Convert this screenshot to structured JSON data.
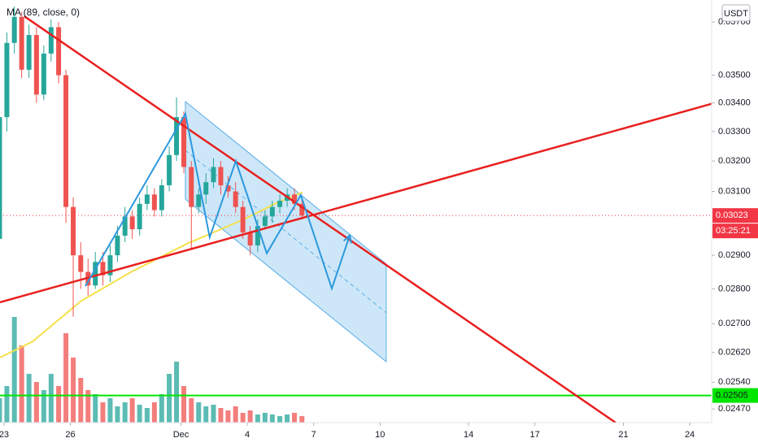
{
  "chart_data": {
    "type": "candlestick",
    "currency_label": "USDT",
    "log_scale": true,
    "x": [
      -0.2,
      0.13,
      0.47,
      0.8,
      1.13,
      1.47,
      1.8,
      2.13,
      2.47,
      2.8,
      3.13,
      3.47,
      3.8,
      4.13,
      4.47,
      4.8,
      5.13,
      5.47,
      5.8,
      6.13,
      6.47,
      6.8,
      7.13,
      7.47,
      7.8,
      8.13,
      8.47,
      8.8,
      9.13,
      9.47,
      9.8,
      10.13,
      10.47,
      10.8,
      11.13,
      11.47,
      11.8,
      12.13,
      12.47,
      12.8,
      13.13,
      13.47
    ],
    "open": [
      0.0295,
      0.0335,
      0.0362,
      0.0372,
      0.0352,
      0.0365,
      0.0343,
      0.0358,
      0.0368,
      0.035,
      0.0305,
      0.029,
      0.0285,
      0.0281,
      0.0288,
      0.0284,
      0.029,
      0.0296,
      0.0302,
      0.0298,
      0.0306,
      0.0309,
      0.0304,
      0.0312,
      0.0322,
      0.0335,
      0.0318,
      0.0305,
      0.0309,
      0.0313,
      0.0318,
      0.0312,
      0.031,
      0.0305,
      0.0297,
      0.0293,
      0.0299,
      0.0302,
      0.0305,
      0.0307,
      0.0309,
      0.0306
    ],
    "high": [
      0.0338,
      0.0366,
      0.0376,
      0.0374,
      0.0369,
      0.0368,
      0.0361,
      0.0371,
      0.037,
      0.0352,
      0.0308,
      0.0294,
      0.0289,
      0.0291,
      0.0291,
      0.0293,
      0.0299,
      0.0305,
      0.0304,
      0.0308,
      0.0312,
      0.0311,
      0.0314,
      0.0325,
      0.0342,
      0.0337,
      0.032,
      0.0311,
      0.0316,
      0.0321,
      0.032,
      0.0315,
      0.0313,
      0.0307,
      0.0299,
      0.0301,
      0.0304,
      0.0307,
      0.0309,
      0.0311,
      0.0311,
      0.0308
    ],
    "low": [
      0.0288,
      0.033,
      0.0358,
      0.0349,
      0.0349,
      0.034,
      0.0341,
      0.0355,
      0.0347,
      0.03,
      0.0272,
      0.028,
      0.0278,
      0.028,
      0.0281,
      0.0282,
      0.0288,
      0.0294,
      0.0295,
      0.0296,
      0.0304,
      0.0302,
      0.0302,
      0.031,
      0.032,
      0.0316,
      0.0292,
      0.0303,
      0.0306,
      0.0311,
      0.0309,
      0.0308,
      0.0303,
      0.0295,
      0.029,
      0.0291,
      0.0298,
      0.03,
      0.0303,
      0.0305,
      0.0304,
      0.0301
    ],
    "close": [
      0.0335,
      0.0362,
      0.0372,
      0.0352,
      0.0365,
      0.0343,
      0.0358,
      0.0368,
      0.035,
      0.0305,
      0.029,
      0.0285,
      0.0281,
      0.0288,
      0.0284,
      0.029,
      0.0296,
      0.0302,
      0.0298,
      0.0306,
      0.0309,
      0.0304,
      0.0312,
      0.0322,
      0.0335,
      0.0318,
      0.0305,
      0.0309,
      0.0313,
      0.0318,
      0.0312,
      0.031,
      0.0305,
      0.0297,
      0.0293,
      0.0299,
      0.0302,
      0.0305,
      0.0307,
      0.0309,
      0.0306,
      0.03023
    ],
    "volume": [
      30,
      45,
      130,
      95,
      60,
      50,
      40,
      60,
      45,
      110,
      80,
      55,
      40,
      35,
      25,
      30,
      20,
      25,
      30,
      22,
      18,
      25,
      35,
      60,
      75,
      45,
      30,
      25,
      20,
      22,
      18,
      15,
      20,
      12,
      15,
      10,
      12,
      10,
      8,
      10,
      12,
      8
    ],
    "up_color": "#26a69a",
    "down_color": "#ef5350",
    "xlim": [
      -0.18,
      31.99
    ],
    "xticks": [
      {
        "value": 0,
        "label": "23"
      },
      {
        "value": 3,
        "label": "26"
      },
      {
        "value": 8,
        "label": "Dec"
      },
      {
        "value": 11,
        "label": "4"
      },
      {
        "value": 14,
        "label": "7"
      },
      {
        "value": 17,
        "label": "10"
      },
      {
        "value": 21,
        "label": "14"
      },
      {
        "value": 24,
        "label": "17"
      },
      {
        "value": 28,
        "label": "21"
      },
      {
        "value": 31,
        "label": "24"
      }
    ],
    "ylim": [
      0.02435,
      0.03786
    ],
    "yticks": [
      {
        "value": 0.037,
        "label": "0.03700"
      },
      {
        "value": 0.035,
        "label": "0.03500"
      },
      {
        "value": 0.034,
        "label": "0.03400"
      },
      {
        "value": 0.033,
        "label": "0.03300"
      },
      {
        "value": 0.032,
        "label": "0.03200"
      },
      {
        "value": 0.031,
        "label": "0.03100"
      },
      {
        "value": 0.029,
        "label": "0.02900"
      },
      {
        "value": 0.028,
        "label": "0.02800"
      },
      {
        "value": 0.027,
        "label": "0.02700"
      },
      {
        "value": 0.0262,
        "label": "0.02620"
      },
      {
        "value": 0.0254,
        "label": "0.02540"
      },
      {
        "value": 0.0247,
        "label": "0.02470"
      }
    ],
    "y2lim": [
      0,
      520
    ],
    "ma": {
      "name": "MA (89, close, 0)",
      "color": "#f5e14a",
      "x": [
        -0.18,
        1.29,
        3.49,
        5.7,
        8.27,
        10.85,
        12.32,
        13.49
      ],
      "values": [
        0.02606,
        0.0265,
        0.02765,
        0.02848,
        0.02935,
        0.03011,
        0.03063,
        0.03097
      ]
    },
    "last_price": 0.03023,
    "countdown": "03:25:21",
    "last_price_color": "#f23645",
    "support": 0.02505,
    "support_color": "#00e600",
    "trend_lines": [
      {
        "color": "#e8201f",
        "x": [
          0.92,
          27.65
        ],
        "y": [
          0.03722,
          0.02435
        ]
      },
      {
        "color": "#e8201f",
        "x": [
          -0.18,
          31.99
        ],
        "y": [
          0.02761,
          0.03397
        ]
      }
    ],
    "channel": {
      "color": "#5aaee8",
      "x": [
        8.2,
        17.28,
        17.28,
        8.2
      ],
      "y": [
        0.03405,
        0.02874,
        0.02595,
        0.03075
      ]
    },
    "path": {
      "color": "#2c98de",
      "x": [
        3.68,
        8.2,
        9.3,
        10.48,
        11.88,
        13.42,
        14.82,
        15.63
      ],
      "y": [
        0.02808,
        0.03362,
        0.02955,
        0.032,
        0.02906,
        0.03088,
        0.02801,
        0.02961
      ]
    }
  }
}
